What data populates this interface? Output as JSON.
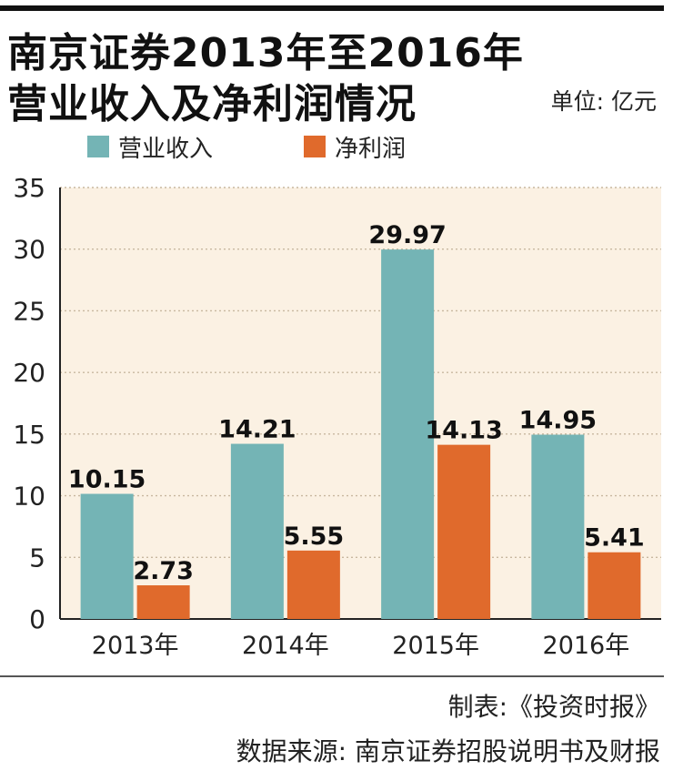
{
  "header": {
    "title_line1": "南京证券2013年至2016年",
    "title_line2": "营业收入及净利润情况",
    "unit": "单位: 亿元"
  },
  "footer": {
    "credit": "制表:《投资时报》",
    "source": "数据来源: 南京证券招股说明书及财报"
  },
  "colors": {
    "revenue": "#74b4b5",
    "profit": "#e06a2c",
    "plot_bg": "#fbf1e3",
    "grid": "#c8b8a0"
  },
  "chart_data": {
    "type": "bar",
    "title": "南京证券2013年至2016年营业收入及净利润情况",
    "unit": "单位: 亿元",
    "categories": [
      "2013年",
      "2014年",
      "2015年",
      "2016年"
    ],
    "series": [
      {
        "name": "营业收入",
        "color": "#74b4b5",
        "values": [
          10.15,
          14.21,
          29.97,
          14.95
        ],
        "labels": [
          "10.15",
          "14.21",
          "29.97",
          "14.95"
        ]
      },
      {
        "name": "净利润",
        "color": "#e06a2c",
        "values": [
          2.73,
          5.55,
          14.13,
          5.41
        ],
        "labels": [
          "2.73",
          "5.55",
          "14.13",
          "5.41"
        ]
      }
    ],
    "ylim": [
      0,
      35
    ],
    "yticks": [
      0,
      5,
      10,
      15,
      20,
      25,
      30,
      35
    ],
    "ytick_labels": [
      "0",
      "5",
      "10",
      "15",
      "20",
      "25",
      "30",
      "35"
    ],
    "grid": true,
    "legend_position": "top-left"
  }
}
